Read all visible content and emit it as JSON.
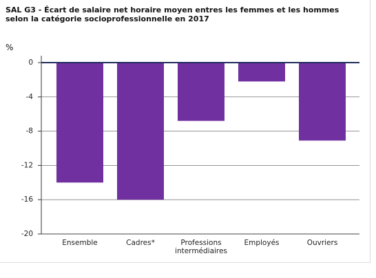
{
  "chart_data": {
    "type": "bar",
    "title": "SAL G3 - Écart de salaire net horaire moyen entres les femmes et les hommes selon la catégorie socioprofessionnelle en 2017",
    "y_label": "%",
    "categories": [
      "Ensemble",
      "Cadres*",
      "Professions intermédiaires",
      "Employés",
      "Ouvriers"
    ],
    "values": [
      -14,
      -16,
      -6.8,
      -2.2,
      -9.1
    ],
    "color": "#7030a0",
    "ylim": [
      -20,
      0
    ],
    "yticks": [
      0,
      -4,
      -8,
      -12,
      -16,
      -20
    ],
    "grid": true
  }
}
